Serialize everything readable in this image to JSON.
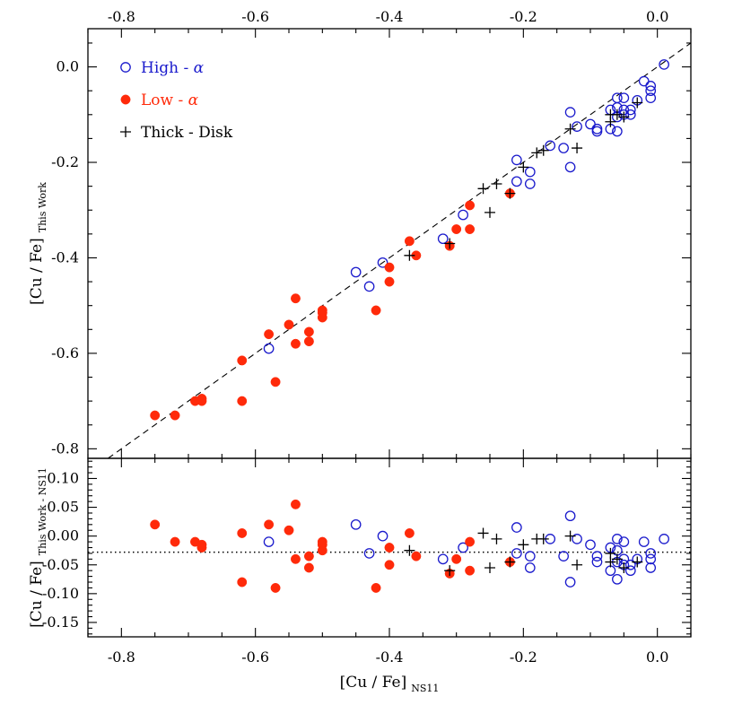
{
  "colors": {
    "high_alpha": "#1a1acc",
    "low_alpha": "#ff2a0a",
    "thick_disk": "#000000",
    "axes": "#000000"
  },
  "chart_data": [
    {
      "id": "top",
      "type": "scatter",
      "xlim": [
        -0.85,
        0.05
      ],
      "ylim": [
        -0.82,
        0.08
      ],
      "xticks": [
        -0.8,
        -0.6,
        -0.4,
        -0.2,
        0.0
      ],
      "xtick_labels": [
        "-0.8",
        "-0.6",
        "-0.4",
        "-0.2",
        "0.0"
      ],
      "yticks": [
        0.0,
        -0.2,
        -0.4,
        -0.6,
        -0.8
      ],
      "ytick_labels": [
        "0.0",
        "-0.2",
        "-0.4",
        "-0.6",
        "-0.8"
      ],
      "ylabel_main": "[Cu / Fe]",
      "ylabel_sub": "This Work",
      "reference_line": {
        "style": "dashed",
        "slope": 1,
        "intercept": 0
      },
      "legend": {
        "position": "top-left",
        "entries": [
          {
            "label_main": "High - ",
            "label_symbol": "α",
            "marker": "open-circle",
            "color": "#1a1acc"
          },
          {
            "label_main": "Low - ",
            "label_symbol": "α",
            "marker": "filled-circle",
            "color": "#ff2a0a"
          },
          {
            "label_main": "Thick - Disk",
            "label_symbol": "",
            "marker": "plus",
            "color": "#000000"
          }
        ]
      },
      "series": [
        {
          "marker": "open-circle",
          "points": [
            [
              -0.58,
              -0.59
            ],
            [
              -0.45,
              -0.43
            ],
            [
              -0.43,
              -0.46
            ],
            [
              -0.41,
              -0.41
            ],
            [
              -0.32,
              -0.36
            ],
            [
              -0.29,
              -0.31
            ],
            [
              -0.21,
              -0.195
            ],
            [
              -0.21,
              -0.24
            ],
            [
              -0.19,
              -0.22
            ],
            [
              -0.19,
              -0.245
            ],
            [
              -0.16,
              -0.165
            ],
            [
              -0.14,
              -0.17
            ],
            [
              -0.13,
              -0.095
            ],
            [
              -0.13,
              -0.21
            ],
            [
              -0.12,
              -0.125
            ],
            [
              -0.1,
              -0.12
            ],
            [
              -0.09,
              -0.13
            ],
            [
              -0.09,
              -0.135
            ],
            [
              -0.07,
              -0.13
            ],
            [
              -0.07,
              -0.09
            ],
            [
              -0.06,
              -0.065
            ],
            [
              -0.06,
              -0.085
            ],
            [
              -0.06,
              -0.105
            ],
            [
              -0.06,
              -0.135
            ],
            [
              -0.05,
              -0.065
            ],
            [
              -0.05,
              -0.09
            ],
            [
              -0.05,
              -0.1
            ],
            [
              -0.04,
              -0.09
            ],
            [
              -0.04,
              -0.1
            ],
            [
              -0.03,
              -0.07
            ],
            [
              -0.02,
              -0.03
            ],
            [
              -0.01,
              -0.04
            ],
            [
              -0.01,
              -0.05
            ],
            [
              -0.01,
              -0.065
            ],
            [
              0.01,
              0.005
            ]
          ]
        },
        {
          "marker": "filled-circle",
          "points": [
            [
              -0.75,
              -0.73
            ],
            [
              -0.72,
              -0.73
            ],
            [
              -0.69,
              -0.7
            ],
            [
              -0.68,
              -0.695
            ],
            [
              -0.68,
              -0.7
            ],
            [
              -0.62,
              -0.615
            ],
            [
              -0.62,
              -0.7
            ],
            [
              -0.58,
              -0.56
            ],
            [
              -0.57,
              -0.66
            ],
            [
              -0.55,
              -0.54
            ],
            [
              -0.54,
              -0.485
            ],
            [
              -0.54,
              -0.58
            ],
            [
              -0.52,
              -0.555
            ],
            [
              -0.52,
              -0.575
            ],
            [
              -0.5,
              -0.51
            ],
            [
              -0.5,
              -0.515
            ],
            [
              -0.5,
              -0.525
            ],
            [
              -0.42,
              -0.51
            ],
            [
              -0.4,
              -0.42
            ],
            [
              -0.4,
              -0.45
            ],
            [
              -0.37,
              -0.365
            ],
            [
              -0.36,
              -0.395
            ],
            [
              -0.31,
              -0.375
            ],
            [
              -0.3,
              -0.34
            ],
            [
              -0.28,
              -0.29
            ],
            [
              -0.28,
              -0.34
            ],
            [
              -0.22,
              -0.265
            ]
          ]
        },
        {
          "marker": "plus",
          "points": [
            [
              -0.37,
              -0.395
            ],
            [
              -0.31,
              -0.37
            ],
            [
              -0.26,
              -0.255
            ],
            [
              -0.25,
              -0.305
            ],
            [
              -0.24,
              -0.245
            ],
            [
              -0.22,
              -0.265
            ],
            [
              -0.2,
              -0.21
            ],
            [
              -0.18,
              -0.18
            ],
            [
              -0.17,
              -0.175
            ],
            [
              -0.13,
              -0.13
            ],
            [
              -0.12,
              -0.17
            ],
            [
              -0.07,
              -0.1
            ],
            [
              -0.07,
              -0.115
            ],
            [
              -0.06,
              -0.1
            ],
            [
              -0.05,
              -0.105
            ],
            [
              -0.03,
              -0.075
            ]
          ]
        }
      ]
    },
    {
      "id": "bottom",
      "type": "scatter",
      "xlim": [
        -0.85,
        0.05
      ],
      "ylim": [
        -0.175,
        0.135
      ],
      "xticks": [
        -0.8,
        -0.6,
        -0.4,
        -0.2,
        0.0
      ],
      "xtick_labels": [
        "-0.8",
        "-0.6",
        "-0.4",
        "-0.2",
        "0.0"
      ],
      "yticks": [
        0.1,
        0.05,
        0.0,
        -0.05,
        -0.1,
        -0.15
      ],
      "ytick_labels": [
        "0.10",
        "0.05",
        "0.00",
        "-0.05",
        "-0.10",
        "-0.15"
      ],
      "xlabel_main": "[Cu / Fe]",
      "xlabel_sub": "NS11",
      "ylabel_main": "[Cu / Fe]",
      "ylabel_sub": "This Work - NS11",
      "reference_line": {
        "style": "dotted",
        "y": -0.028
      },
      "series": [
        {
          "marker": "open-circle",
          "points": [
            [
              -0.58,
              -0.01
            ],
            [
              -0.45,
              0.02
            ],
            [
              -0.43,
              -0.03
            ],
            [
              -0.41,
              0.0
            ],
            [
              -0.32,
              -0.04
            ],
            [
              -0.29,
              -0.02
            ],
            [
              -0.21,
              0.015
            ],
            [
              -0.21,
              -0.03
            ],
            [
              -0.19,
              -0.035
            ],
            [
              -0.19,
              -0.055
            ],
            [
              -0.16,
              -0.005
            ],
            [
              -0.14,
              -0.035
            ],
            [
              -0.13,
              0.035
            ],
            [
              -0.13,
              -0.08
            ],
            [
              -0.12,
              -0.005
            ],
            [
              -0.1,
              -0.015
            ],
            [
              -0.09,
              -0.035
            ],
            [
              -0.09,
              -0.045
            ],
            [
              -0.07,
              -0.06
            ],
            [
              -0.07,
              -0.02
            ],
            [
              -0.06,
              -0.005
            ],
            [
              -0.06,
              -0.025
            ],
            [
              -0.06,
              -0.045
            ],
            [
              -0.06,
              -0.075
            ],
            [
              -0.05,
              -0.01
            ],
            [
              -0.05,
              -0.04
            ],
            [
              -0.05,
              -0.05
            ],
            [
              -0.04,
              -0.05
            ],
            [
              -0.04,
              -0.06
            ],
            [
              -0.03,
              -0.04
            ],
            [
              -0.02,
              -0.01
            ],
            [
              -0.01,
              -0.03
            ],
            [
              -0.01,
              -0.04
            ],
            [
              -0.01,
              -0.055
            ],
            [
              0.01,
              -0.005
            ]
          ]
        },
        {
          "marker": "filled-circle",
          "points": [
            [
              -0.75,
              0.02
            ],
            [
              -0.72,
              -0.01
            ],
            [
              -0.69,
              -0.01
            ],
            [
              -0.68,
              -0.015
            ],
            [
              -0.68,
              -0.02
            ],
            [
              -0.62,
              0.005
            ],
            [
              -0.62,
              -0.08
            ],
            [
              -0.58,
              0.02
            ],
            [
              -0.57,
              -0.09
            ],
            [
              -0.55,
              0.01
            ],
            [
              -0.54,
              0.055
            ],
            [
              -0.54,
              -0.04
            ],
            [
              -0.52,
              -0.035
            ],
            [
              -0.52,
              -0.055
            ],
            [
              -0.5,
              -0.01
            ],
            [
              -0.5,
              -0.015
            ],
            [
              -0.5,
              -0.025
            ],
            [
              -0.42,
              -0.09
            ],
            [
              -0.4,
              -0.02
            ],
            [
              -0.4,
              -0.05
            ],
            [
              -0.37,
              0.005
            ],
            [
              -0.36,
              -0.035
            ],
            [
              -0.31,
              -0.065
            ],
            [
              -0.3,
              -0.04
            ],
            [
              -0.28,
              -0.01
            ],
            [
              -0.28,
              -0.06
            ],
            [
              -0.22,
              -0.045
            ]
          ]
        },
        {
          "marker": "plus",
          "points": [
            [
              -0.37,
              -0.025
            ],
            [
              -0.31,
              -0.06
            ],
            [
              -0.26,
              0.005
            ],
            [
              -0.25,
              -0.055
            ],
            [
              -0.24,
              -0.005
            ],
            [
              -0.22,
              -0.045
            ],
            [
              -0.2,
              -0.015
            ],
            [
              -0.18,
              -0.005
            ],
            [
              -0.17,
              -0.005
            ],
            [
              -0.13,
              0.0
            ],
            [
              -0.12,
              -0.05
            ],
            [
              -0.07,
              -0.03
            ],
            [
              -0.07,
              -0.045
            ],
            [
              -0.06,
              -0.04
            ],
            [
              -0.05,
              -0.055
            ],
            [
              -0.03,
              -0.045
            ]
          ]
        }
      ]
    }
  ]
}
